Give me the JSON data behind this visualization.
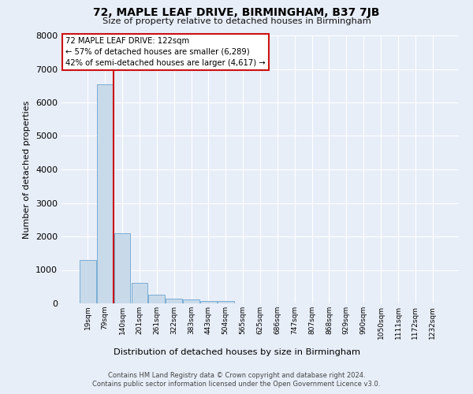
{
  "title_line1": "72, MAPLE LEAF DRIVE, BIRMINGHAM, B37 7JB",
  "title_line2": "Size of property relative to detached houses in Birmingham",
  "xlabel": "Distribution of detached houses by size in Birmingham",
  "ylabel": "Number of detached properties",
  "annotation_line1": "72 MAPLE LEAF DRIVE: 122sqm",
  "annotation_line2": "← 57% of detached houses are smaller (6,289)",
  "annotation_line3": "42% of semi-detached houses are larger (4,617) →",
  "footer_line1": "Contains HM Land Registry data © Crown copyright and database right 2024.",
  "footer_line2": "Contains public sector information licensed under the Open Government Licence v3.0.",
  "bar_color": "#c8daea",
  "bar_edge_color": "#7aadd4",
  "red_line_color": "#cc1111",
  "bg_color": "#e8eef8",
  "grid_color": "#ffffff",
  "ann_face_color": "#ffffff",
  "ann_edge_color": "#cc1111",
  "categories": [
    "19sqm",
    "79sqm",
    "140sqm",
    "201sqm",
    "261sqm",
    "322sqm",
    "383sqm",
    "443sqm",
    "504sqm",
    "565sqm",
    "625sqm",
    "686sqm",
    "747sqm",
    "807sqm",
    "868sqm",
    "929sqm",
    "990sqm",
    "1050sqm",
    "1111sqm",
    "1172sqm",
    "1232sqm"
  ],
  "values": [
    1300,
    6550,
    2100,
    620,
    260,
    130,
    110,
    80,
    60,
    0,
    0,
    0,
    0,
    0,
    0,
    0,
    0,
    0,
    0,
    0,
    0
  ],
  "red_line_x": 1.48,
  "ylim": [
    0,
    8000
  ],
  "yticks": [
    0,
    1000,
    2000,
    3000,
    4000,
    5000,
    6000,
    7000,
    8000
  ]
}
